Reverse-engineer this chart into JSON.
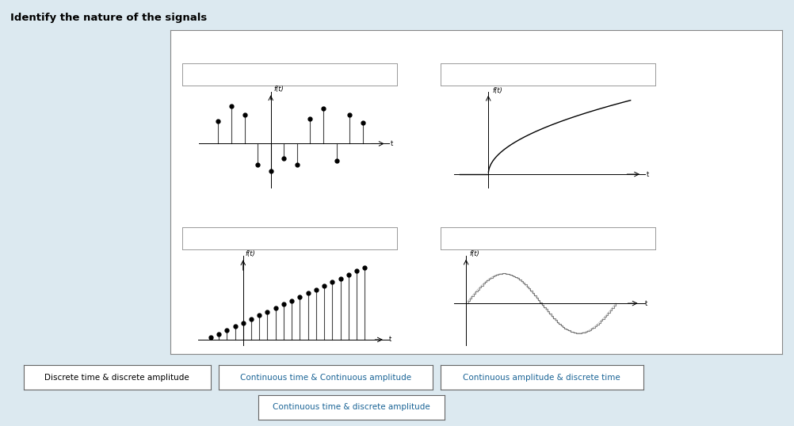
{
  "title": "Identify the nature of the signals",
  "bg_color": "#dce9f0",
  "panel_bg": "#ffffff",
  "answer_boxes_row1": [
    "Discrete time & discrete amplitude",
    "Continuous time & Continuous amplitude",
    "Continuous amplitude & discrete time"
  ],
  "answer_box_row2": "Continuous time & discrete amplitude",
  "text_color_black": "#000000",
  "text_color_blue": "#1a6496"
}
